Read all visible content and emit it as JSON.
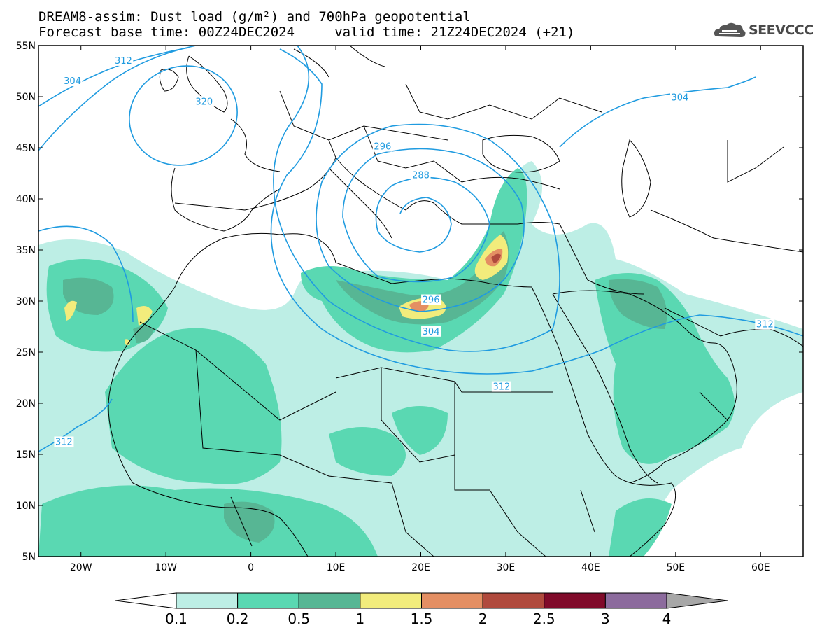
{
  "title": {
    "line1": "DREAM8-assim: Dust load (g/m²) and 700hPa geopotential",
    "line2": "Forecast base time: 00Z24DEC2024     valid time: 21Z24DEC2024 (+21)"
  },
  "logo": {
    "text": "SEEVCCC",
    "icon": "cloud-icon"
  },
  "map": {
    "lon_range": [
      -25,
      65
    ],
    "lat_range": [
      5,
      55
    ],
    "lat_ticks": [
      {
        "v": 55,
        "label": "55N"
      },
      {
        "v": 50,
        "label": "50N"
      },
      {
        "v": 45,
        "label": "45N"
      },
      {
        "v": 40,
        "label": "40N"
      },
      {
        "v": 35,
        "label": "35N"
      },
      {
        "v": 30,
        "label": "30N"
      },
      {
        "v": 25,
        "label": "25N"
      },
      {
        "v": 20,
        "label": "20N"
      },
      {
        "v": 15,
        "label": "15N"
      },
      {
        "v": 10,
        "label": "10N"
      },
      {
        "v": 5,
        "label": "5N"
      }
    ],
    "lon_ticks": [
      {
        "v": -20,
        "label": "20W"
      },
      {
        "v": -10,
        "label": "10W"
      },
      {
        "v": 0,
        "label": "0"
      },
      {
        "v": 10,
        "label": "10E"
      },
      {
        "v": 20,
        "label": "20E"
      },
      {
        "v": 30,
        "label": "30E"
      },
      {
        "v": 40,
        "label": "40E"
      },
      {
        "v": 50,
        "label": "50E"
      },
      {
        "v": 60,
        "label": "60E"
      }
    ],
    "contour_labels": [
      {
        "text": "304",
        "lon": -21,
        "lat": 51.5
      },
      {
        "text": "312",
        "lon": -15,
        "lat": 53.5
      },
      {
        "text": "320",
        "lon": -5.5,
        "lat": 49.5
      },
      {
        "text": "296",
        "lon": 15.5,
        "lat": 45.1
      },
      {
        "text": "288",
        "lon": 20,
        "lat": 42.3
      },
      {
        "text": "296",
        "lon": 21.2,
        "lat": 30.1
      },
      {
        "text": "304",
        "lon": 21.2,
        "lat": 27.0
      },
      {
        "text": "312",
        "lon": 29.5,
        "lat": 21.6
      },
      {
        "text": "304",
        "lon": 50.5,
        "lat": 49.9
      },
      {
        "text": "312",
        "lon": 60.5,
        "lat": 27.7
      },
      {
        "text": "312",
        "lon": -22,
        "lat": 16.2
      }
    ]
  },
  "colorbar": {
    "levels": [
      "0.1",
      "0.2",
      "0.5",
      "1",
      "1.5",
      "2",
      "2.5",
      "3",
      "4"
    ],
    "colors": [
      "#ffffff",
      "#bdeee5",
      "#5ad8b2",
      "#57b694",
      "#f2ec7c",
      "#e48f63",
      "#b04a3d",
      "#800a2a",
      "#8c6b9d",
      "#a7a7a7"
    ]
  }
}
